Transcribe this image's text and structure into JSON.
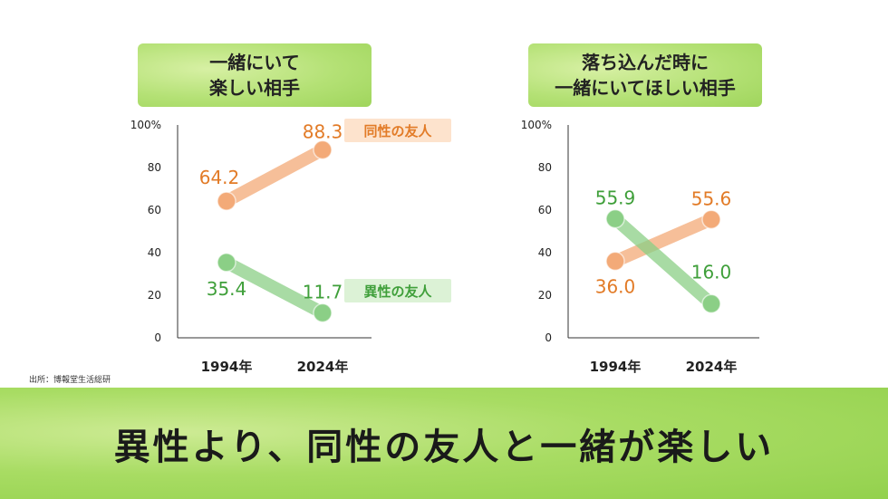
{
  "chart_data": [
    {
      "type": "line",
      "title_lines": [
        "一緒にいて",
        "楽しい相手"
      ],
      "categories": [
        "1994年",
        "2024年"
      ],
      "ylim": [
        0,
        100
      ],
      "yticks": [
        "0",
        "20",
        "40",
        "60",
        "80",
        "100%"
      ],
      "series": [
        {
          "name": "同性の友人",
          "values": [
            64.2,
            88.3
          ],
          "labels": [
            "64.2",
            "88.3"
          ],
          "color": "#f3aa78",
          "text_color": "#e27b27"
        },
        {
          "name": "異性の友人",
          "values": [
            35.4,
            11.7
          ],
          "labels": [
            "35.4",
            "11.7"
          ],
          "color": "#8bcf86",
          "text_color": "#3f9f3a"
        }
      ]
    },
    {
      "type": "line",
      "title_lines": [
        "落ち込んだ時に",
        "一緒にいてほしい相手"
      ],
      "categories": [
        "1994年",
        "2024年"
      ],
      "ylim": [
        0,
        100
      ],
      "yticks": [
        "0",
        "20",
        "40",
        "60",
        "80",
        "100%"
      ],
      "series": [
        {
          "name": "",
          "values": [
            36.0,
            55.6
          ],
          "labels": [
            "36.0",
            "55.6"
          ],
          "color": "#f3aa78",
          "text_color": "#e27b27"
        },
        {
          "name": "",
          "values": [
            55.9,
            16.0
          ],
          "labels": [
            "55.9",
            "16.0"
          ],
          "color": "#8bcf86",
          "text_color": "#3f9f3a"
        }
      ]
    }
  ],
  "source": "出所：博報堂生活総研",
  "headline": "異性より、同性の友人と一緒が楽しい"
}
